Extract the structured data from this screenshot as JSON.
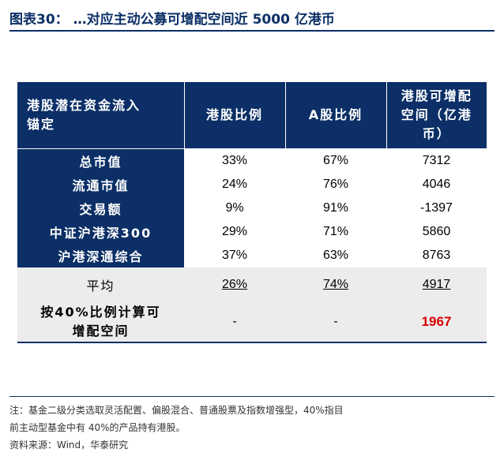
{
  "title": {
    "label": "图表30：",
    "text": "…对应主动公募可增配空间近 5000 亿港币"
  },
  "table": {
    "headers": {
      "col1_line1": "港股潜在资金流入",
      "col1_line2": "锚定",
      "col2": "港股比例",
      "col3": "A股比例",
      "col4_line1": "港股可增配",
      "col4_line2": "空间（亿港",
      "col4_line3": "币）"
    },
    "rows": [
      {
        "label": "总市值",
        "hk": "33%",
        "a": "67%",
        "space": "7312"
      },
      {
        "label": "流通市值",
        "hk": "24%",
        "a": "76%",
        "space": "4046"
      },
      {
        "label": "交易额",
        "hk": "9%",
        "a": "91%",
        "space": "-1397"
      },
      {
        "label": "中证沪港深300",
        "hk": "29%",
        "a": "71%",
        "space": "5860"
      },
      {
        "label": "沪港深通综合",
        "hk": "37%",
        "a": "63%",
        "space": "8763"
      }
    ],
    "average": {
      "label": "平均",
      "hk": "26%",
      "a": "74%",
      "space": "4917"
    },
    "calc": {
      "label_line1": "按40%比例计算可",
      "label_line2": "增配空间",
      "hk": "-",
      "a": "-",
      "space": "1967"
    }
  },
  "notes": {
    "line1": "注：基金二级分类选取灵活配置、偏股混合、普通股票及指数增强型，40%指目",
    "line2": "前主动型基金中有 40%的产品持有港股。",
    "source": "资料来源：Wind，华泰研究"
  },
  "colors": {
    "header_bg": "#0b2f66",
    "highlight_red": "#d80000",
    "row_gray": "#ececec"
  }
}
